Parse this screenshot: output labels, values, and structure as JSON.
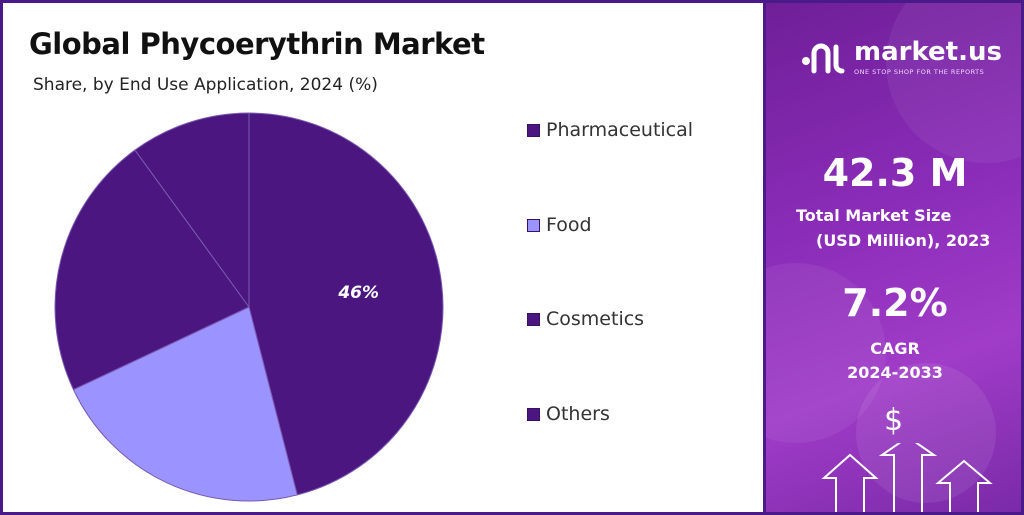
{
  "chart_data": {
    "type": "pie",
    "title": "Global Phycoerythrin Market",
    "subtitle": "Share, by End Use Application, 2024 (%)",
    "categories": [
      "Pharmaceutical",
      "Food",
      "Cosmetics",
      "Others"
    ],
    "values": [
      46,
      22,
      22,
      10
    ],
    "labels_shown": [
      "46%",
      "",
      "",
      ""
    ],
    "colors": [
      "#4b1680",
      "#9b93ff",
      "#4b1680",
      "#4b1680"
    ],
    "legend_position": "right"
  },
  "side": {
    "brand_name": "market.us",
    "brand_tagline": "ONE STOP SHOP FOR THE REPORTS",
    "market_size_value": "42.3 M",
    "market_size_label_1": "Total Market Size",
    "market_size_label_2": "(USD Million), 2023",
    "cagr_value": "7.2%",
    "cagr_label_1": "CAGR",
    "cagr_label_2": "2024-2033",
    "dollar_symbol": "$"
  }
}
